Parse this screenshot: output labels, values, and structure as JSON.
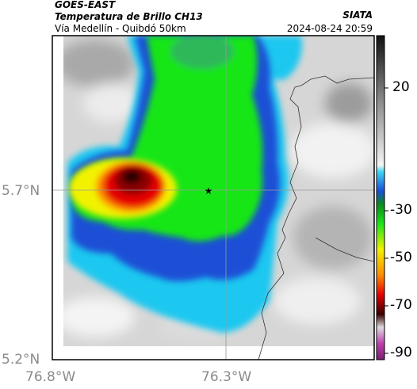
{
  "header": {
    "satellite": "GOES-EAST",
    "product": "Temperatura de Brillo CH13",
    "route": "Vía Medellín - Quibdó 50km",
    "org": "SIATA",
    "datetime": "2024-08-24 20:59"
  },
  "axes": {
    "lat_labels": [
      "5.7°N",
      "5.2°N"
    ],
    "lon_labels": [
      "76.8°W",
      "76.3°W"
    ]
  },
  "colorbar": {
    "labels": [
      "20",
      "-30",
      "-50",
      "-70",
      "-90"
    ]
  },
  "colors": {
    "coldest": "#8b0000",
    "red": "#e60000",
    "yellow": "#f2f200",
    "green": "#19e619",
    "blue": "#1a4fd6",
    "cyan": "#1ec8f0",
    "magenta": "#c040b0"
  },
  "marker": {
    "icon": "star-icon",
    "glyph": "★"
  }
}
